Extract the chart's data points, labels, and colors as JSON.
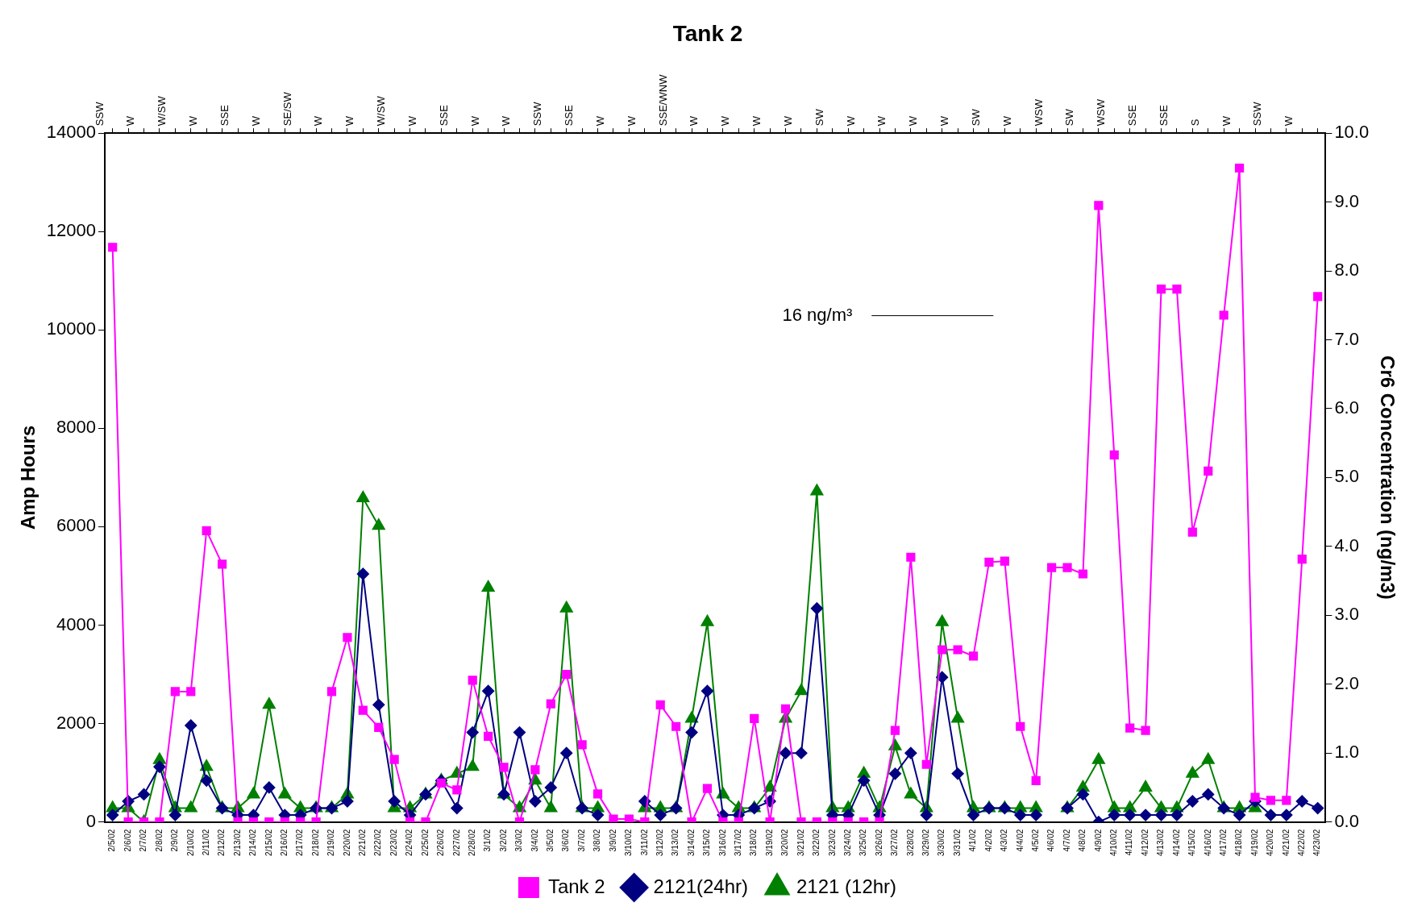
{
  "chart_data": {
    "type": "line",
    "title": "Tank 2",
    "ylabel": "Amp Hours",
    "y2label": "Cr6 Concentration (ng/m3)",
    "categories": [
      "2/5/02",
      "2/6/02",
      "2/7/02",
      "2/8/02",
      "2/9/02",
      "2/10/02",
      "2/11/02",
      "2/12/02",
      "2/13/02",
      "2/14/02",
      "2/15/02",
      "2/16/02",
      "2/17/02",
      "2/18/02",
      "2/19/02",
      "2/20/02",
      "2/21/02",
      "2/22/02",
      "2/23/02",
      "2/24/02",
      "2/25/02",
      "2/26/02",
      "2/27/02",
      "2/28/02",
      "3/1/02",
      "3/2/02",
      "3/3/02",
      "3/4/02",
      "3/5/02",
      "3/6/02",
      "3/7/02",
      "3/8/02",
      "3/9/02",
      "3/10/02",
      "3/11/02",
      "3/12/02",
      "3/13/02",
      "3/14/02",
      "3/15/02",
      "3/16/02",
      "3/17/02",
      "3/18/02",
      "3/19/02",
      "3/20/02",
      "3/21/02",
      "3/22/02",
      "3/23/02",
      "3/24/02",
      "3/25/02",
      "3/26/02",
      "3/27/02",
      "3/28/02",
      "3/29/02",
      "3/30/02",
      "3/31/02",
      "4/1/02",
      "4/2/02",
      "4/3/02",
      "4/4/02",
      "4/5/02",
      "4/6/02",
      "4/7/02",
      "4/8/02",
      "4/9/02",
      "4/10/02",
      "4/11/02",
      "4/12/02",
      "4/13/02",
      "4/14/02",
      "4/15/02",
      "4/16/02",
      "4/17/02",
      "4/18/02",
      "4/19/02",
      "4/20/02",
      "4/21/02",
      "4/22/02",
      "4/23/02"
    ],
    "series": [
      {
        "name": "Tank 2",
        "color": "#ff00ff",
        "marker": "square",
        "values": [
          11680,
          0,
          0,
          0,
          2650,
          2650,
          5920,
          5240,
          0,
          0,
          0,
          0,
          0,
          0,
          2650,
          3750,
          2270,
          1920,
          1270,
          0,
          0,
          790,
          650,
          2880,
          1740,
          1110,
          0,
          1060,
          2400,
          3000,
          1570,
          570,
          60,
          60,
          0,
          2380,
          1940,
          0,
          680,
          0,
          0,
          2100,
          0,
          2300,
          0,
          0,
          0,
          0,
          0,
          0,
          1860,
          5380,
          1170,
          3500,
          3500,
          3370,
          5280,
          5300,
          1940,
          840,
          5170,
          5170,
          5040,
          12530,
          7460,
          1910,
          1860,
          10830,
          10830,
          5890,
          7130,
          10300,
          13290,
          500,
          440,
          440,
          5340,
          10680
        ]
      },
      {
        "name": "2121(24hr)",
        "color": "#000080",
        "marker": "diamond",
        "axis": "y2",
        "values": [
          0.1,
          0.3,
          0.4,
          0.8,
          0.1,
          1.4,
          0.6,
          0.2,
          0.1,
          0.1,
          0.5,
          0.1,
          0.1,
          0.2,
          0.2,
          0.3,
          3.6,
          1.7,
          0.3,
          0.1,
          0.4,
          0.6,
          0.2,
          1.3,
          1.9,
          0.4,
          1.3,
          0.3,
          0.5,
          1.0,
          0.2,
          0.1,
          null,
          null,
          0.3,
          0.1,
          0.2,
          1.3,
          1.9,
          0.1,
          0.1,
          0.2,
          0.3,
          1.0,
          1.0,
          3.1,
          0.1,
          0.1,
          0.6,
          0.1,
          0.7,
          1.0,
          0.1,
          2.1,
          0.7,
          0.1,
          0.2,
          0.2,
          0.1,
          0.1,
          null,
          0.2,
          0.4,
          0,
          0.1,
          0.1,
          0.1,
          0.1,
          0.1,
          0.3,
          0.4,
          0.2,
          0.1,
          0.3,
          0.1,
          0.1,
          0.3,
          0.2
        ]
      },
      {
        "name": "2121 (12hr)",
        "color": "#008000",
        "marker": "triangle",
        "axis": "y2",
        "values": [
          0.2,
          0.2,
          0,
          0.9,
          0.2,
          0.2,
          0.8,
          0.2,
          0.2,
          0.4,
          1.7,
          0.4,
          0.2,
          0.2,
          0.2,
          0.4,
          4.7,
          4.3,
          0.2,
          0.2,
          0.4,
          0.6,
          0.7,
          0.8,
          3.4,
          0.4,
          0.2,
          0.6,
          0.2,
          3.1,
          0.2,
          0.2,
          null,
          null,
          0.2,
          0.2,
          0.2,
          1.5,
          2.9,
          0.4,
          0.2,
          0.2,
          0.5,
          1.5,
          1.9,
          4.8,
          0.2,
          0.2,
          0.7,
          0.2,
          1.1,
          0.4,
          0.2,
          2.9,
          1.5,
          0.2,
          0.2,
          0.2,
          0.2,
          0.2,
          null,
          0.2,
          0.5,
          0.9,
          0.2,
          0.2,
          0.5,
          0.2,
          0.2,
          0.7,
          0.9,
          0.2,
          0.2,
          0.2,
          null,
          null,
          null,
          null
        ]
      }
    ],
    "ylim": [
      0,
      14000
    ],
    "yticks": [
      0,
      2000,
      4000,
      6000,
      8000,
      10000,
      12000,
      14000
    ],
    "y2lim": [
      0,
      10
    ],
    "y2ticks": [
      {
        "value": 0,
        "label": "0.0"
      },
      {
        "value": 1,
        "label": "1.0"
      },
      {
        "value": 2,
        "label": "2.0"
      },
      {
        "value": 3,
        "label": "3.0"
      },
      {
        "value": 4,
        "label": "4.0"
      },
      {
        "value": 5,
        "label": "5.0"
      },
      {
        "value": 6,
        "label": "6.0"
      },
      {
        "value": 7,
        "label": "7.0"
      },
      {
        "value": 8,
        "label": "8.0"
      },
      {
        "value": 9,
        "label": "9.0"
      },
      {
        "value": 10,
        "label": "10.0"
      }
    ],
    "grid": false,
    "legend": "bottom",
    "line_style": "solid",
    "annotations": [
      "16 ng/m³",
      "SSW",
      "W",
      "W/SW",
      "W",
      "SSE",
      "W",
      "SE/SW",
      "W",
      "W",
      "W/SW",
      "W",
      "SSE",
      "W",
      "W",
      "SSW",
      "SSE",
      "W",
      "W",
      "SSE/WNW",
      "W",
      "W",
      "W",
      "W",
      "SW",
      "W",
      "W",
      "W",
      "W",
      "SW",
      "W",
      "WSW",
      "SW",
      "WSW",
      "SSE",
      "SSE",
      "S",
      "W",
      "SSW",
      "W"
    ]
  }
}
